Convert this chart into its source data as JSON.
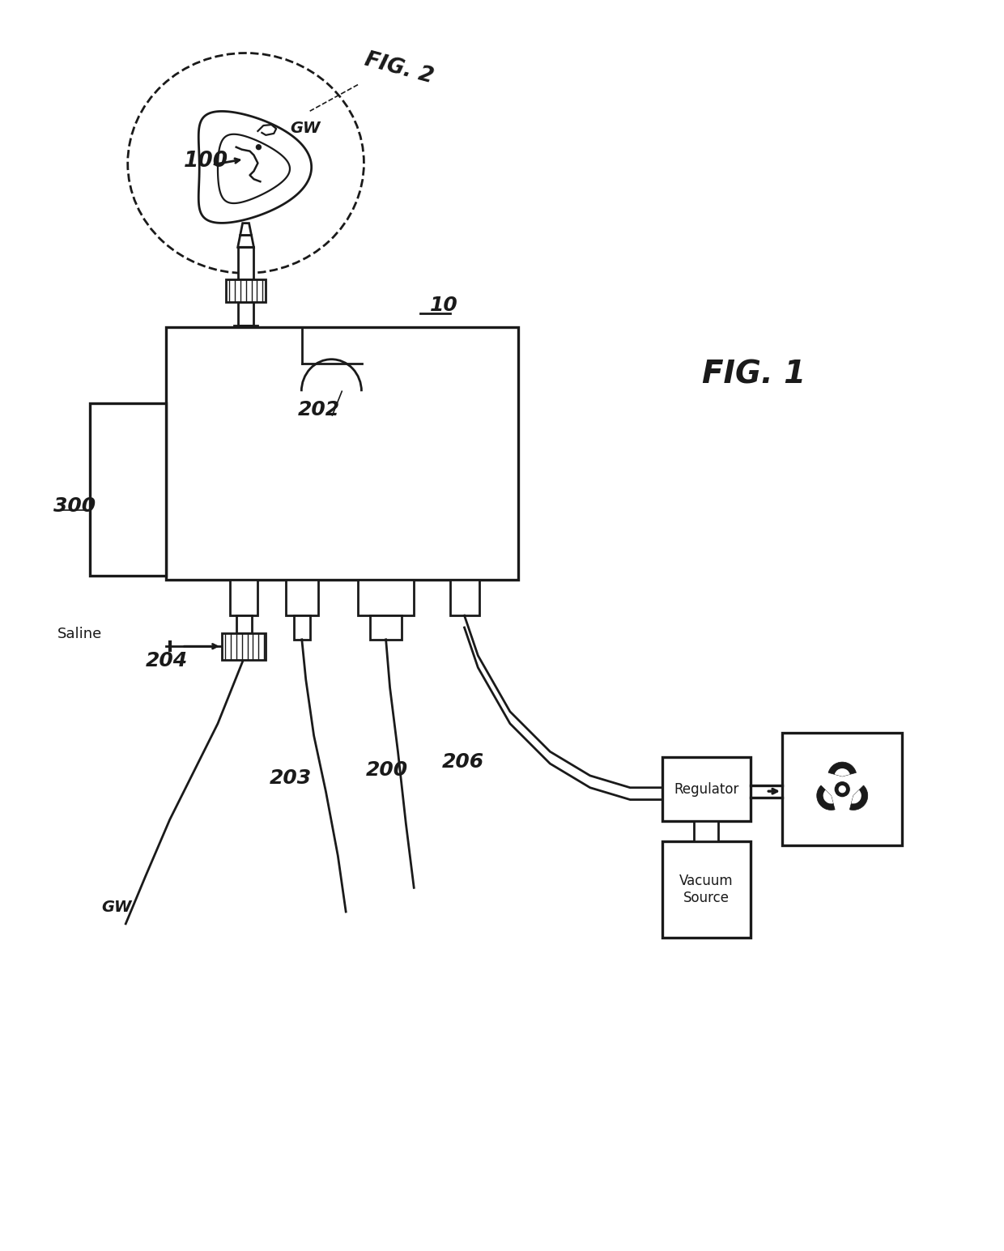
{
  "background_color": "#ffffff",
  "line_color": "#1a1a1a",
  "labels": {
    "fig1": "FIG. 1",
    "fig2": "FIG. 2",
    "num_100": "100",
    "num_10": "10",
    "num_202": "202",
    "num_300": "300",
    "num_200": "200",
    "num_203": "203",
    "num_204": "204",
    "num_206": "206",
    "gw_top": "GW",
    "gw_bottom": "GW",
    "saline": "Saline",
    "regulator": "Regulator",
    "vacuum_source": "Vacuum\nSource"
  }
}
